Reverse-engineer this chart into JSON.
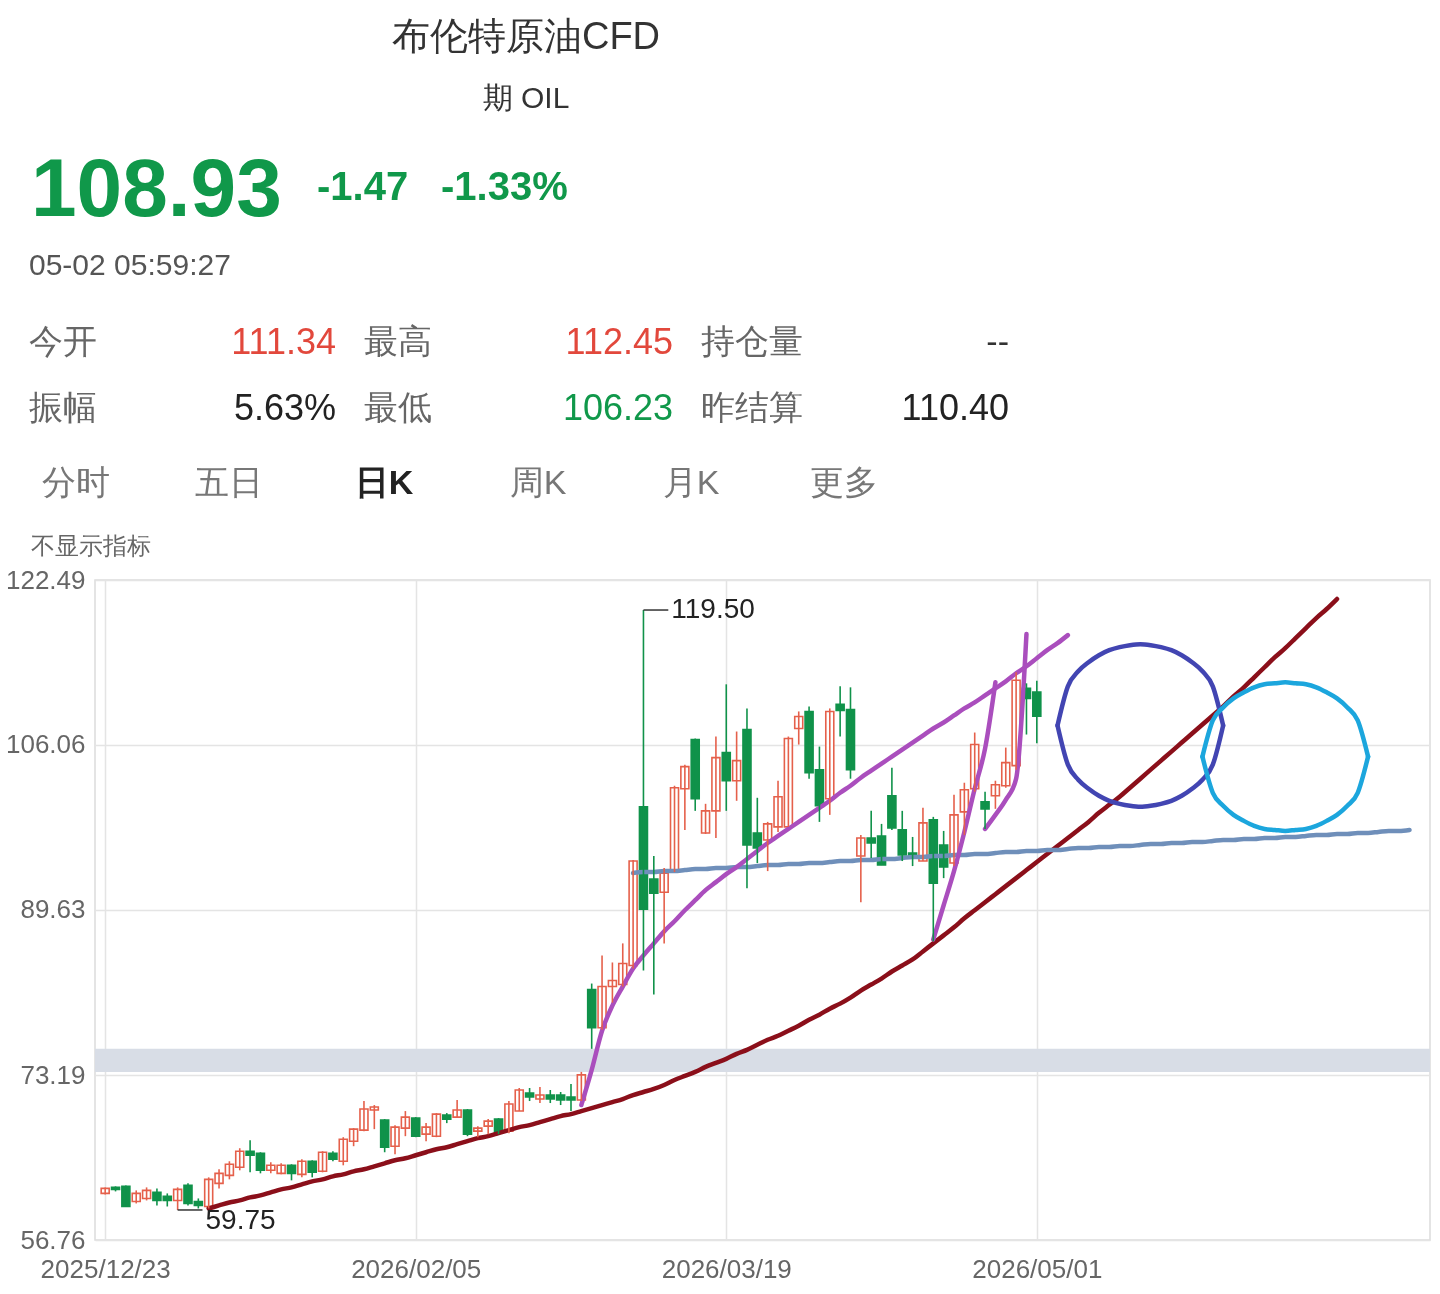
{
  "chart_data": {
    "type": "candlestick",
    "title": "布伦特原油CFD",
    "subtitle": "期 OIL",
    "categories": [
      "2025/12/23",
      null,
      null,
      null,
      null,
      null,
      null,
      null,
      null,
      null,
      null,
      null,
      null,
      null,
      null,
      null,
      null,
      null,
      null,
      null,
      null,
      null,
      null,
      null,
      null,
      null,
      null,
      null,
      null,
      null,
      "2026/02/05",
      null,
      null,
      null,
      null,
      null,
      null,
      null,
      null,
      null,
      null,
      null,
      null,
      null,
      null,
      null,
      null,
      null,
      null,
      null,
      null,
      null,
      null,
      null,
      null,
      null,
      null,
      null,
      null,
      null,
      "2026/03/19",
      null,
      null,
      null,
      null,
      null,
      null,
      null,
      null,
      null,
      null,
      null,
      null,
      null,
      null,
      null,
      null,
      null,
      null,
      null,
      null,
      null,
      null,
      null,
      null,
      null,
      null,
      null,
      null,
      null,
      "2026/05/01",
      null,
      null,
      null,
      null,
      null,
      null,
      null,
      null,
      null,
      null,
      null,
      null,
      null,
      null,
      null,
      null,
      null,
      null,
      null,
      null,
      null,
      null,
      null,
      null,
      null,
      null,
      null,
      null,
      null,
      null,
      null,
      null,
      null,
      null,
      null,
      null,
      null
    ],
    "ohlc": [
      [
        61.4,
        62.0,
        61.3,
        61.9
      ],
      [
        62.0,
        62.1,
        61.6,
        61.8
      ],
      [
        62.1,
        62.2,
        60.1,
        60.1
      ],
      [
        60.6,
        61.7,
        60.4,
        61.4
      ],
      [
        60.9,
        62.0,
        60.7,
        61.7
      ],
      [
        61.5,
        61.9,
        60.2,
        60.7
      ],
      [
        61.1,
        61.4,
        60.1,
        60.7
      ],
      [
        60.7,
        62.0,
        59.75,
        61.8
      ],
      [
        62.2,
        62.4,
        60.2,
        60.4
      ],
      [
        60.6,
        60.9,
        59.9,
        60.2
      ],
      [
        60.1,
        63.0,
        59.9,
        62.8
      ],
      [
        62.4,
        63.8,
        61.9,
        63.4
      ],
      [
        63.2,
        64.6,
        62.8,
        64.3
      ],
      [
        64.0,
        65.9,
        63.7,
        65.6
      ],
      [
        65.6,
        66.7,
        63.5,
        65.2
      ],
      [
        65.4,
        65.5,
        63.4,
        63.7
      ],
      [
        63.7,
        64.5,
        63.4,
        64.2
      ],
      [
        63.4,
        64.4,
        63.3,
        64.2
      ],
      [
        64.2,
        64.3,
        62.7,
        63.4
      ],
      [
        63.3,
        64.8,
        63.0,
        64.6
      ],
      [
        64.6,
        64.7,
        63.0,
        63.5
      ],
      [
        63.6,
        65.6,
        63.5,
        65.5
      ],
      [
        65.4,
        65.6,
        64.6,
        64.8
      ],
      [
        64.6,
        67.0,
        64.2,
        66.8
      ],
      [
        66.6,
        67.9,
        66.1,
        67.8
      ],
      [
        67.7,
        70.6,
        67.6,
        69.8
      ],
      [
        69.7,
        70.2,
        67.8,
        70.0
      ],
      [
        68.7,
        68.8,
        65.5,
        66.0
      ],
      [
        66.1,
        68.2,
        65.3,
        68.0
      ],
      [
        67.9,
        69.6,
        67.1,
        69.0
      ],
      [
        68.9,
        69.0,
        67.0,
        67.1
      ],
      [
        67.3,
        68.4,
        66.6,
        68.0
      ],
      [
        67.1,
        69.4,
        67.0,
        69.3
      ],
      [
        69.2,
        69.4,
        68.4,
        68.8
      ],
      [
        69.0,
        70.7,
        68.9,
        69.7
      ],
      [
        69.7,
        69.8,
        67.1,
        67.3
      ],
      [
        67.6,
        68.1,
        67.0,
        67.9
      ],
      [
        68.1,
        68.8,
        67.3,
        68.6
      ],
      [
        68.8,
        68.9,
        67.3,
        67.4
      ],
      [
        67.6,
        70.6,
        67.4,
        70.3
      ],
      [
        69.6,
        71.9,
        69.6,
        71.7
      ],
      [
        71.4,
        71.9,
        70.6,
        71.0
      ],
      [
        70.8,
        72.0,
        70.4,
        71.2
      ],
      [
        71.2,
        71.7,
        70.4,
        70.8
      ],
      [
        71.2,
        71.5,
        70.2,
        70.7
      ],
      [
        71.0,
        72.3,
        69.6,
        70.7
      ],
      [
        70.7,
        73.5,
        70.6,
        73.2
      ],
      [
        81.7,
        82.3,
        75.8,
        77.9
      ],
      [
        77.9,
        85.1,
        77.7,
        82.0
      ],
      [
        82.0,
        84.4,
        80.4,
        82.6
      ],
      [
        82.2,
        86.3,
        82.0,
        84.3
      ],
      [
        84.1,
        94.6,
        83.8,
        94.5
      ],
      [
        99.9,
        119.5,
        83.6,
        89.7
      ],
      [
        92.7,
        95.0,
        81.2,
        91.3
      ],
      [
        91.4,
        93.8,
        86.3,
        93.3
      ],
      [
        93.5,
        102.0,
        93.4,
        101.8
      ],
      [
        101.7,
        104.1,
        97.6,
        103.9
      ],
      [
        106.6,
        106.7,
        99.5,
        100.7
      ],
      [
        97.3,
        100.2,
        97.2,
        99.5
      ],
      [
        99.5,
        106.9,
        96.8,
        104.8
      ],
      [
        105.3,
        112.1,
        99.5,
        102.5
      ],
      [
        102.5,
        107.4,
        100.5,
        104.5
      ],
      [
        107.6,
        109.7,
        91.8,
        96.1
      ],
      [
        97.3,
        100.8,
        94.3,
        95.8
      ],
      [
        96.6,
        98.4,
        93.5,
        98.2
      ],
      [
        97.9,
        102.5,
        97.4,
        100.9
      ],
      [
        97.9,
        106.9,
        97.9,
        106.7
      ],
      [
        107.7,
        109.4,
        106.1,
        108.9
      ],
      [
        109.4,
        109.9,
        102.7,
        103.3
      ],
      [
        103.6,
        105.9,
        98.4,
        100.0
      ],
      [
        100.7,
        109.7,
        99.1,
        109.4
      ],
      [
        110.1,
        111.9,
        106.9,
        109.5
      ],
      [
        109.6,
        111.8,
        102.7,
        103.6
      ],
      [
        95.0,
        97.1,
        90.4,
        96.8
      ],
      [
        96.8,
        99.5,
        94.8,
        96.3
      ],
      [
        97.0,
        98.2,
        94.1,
        94.1
      ],
      [
        101.0,
        103.8,
        97.6,
        97.8
      ],
      [
        97.6,
        99.5,
        94.5,
        95.1
      ],
      [
        95.3,
        96.9,
        94.0,
        95.0
      ],
      [
        94.5,
        99.8,
        94.5,
        98.3
      ],
      [
        98.6,
        98.9,
        86.5,
        92.3
      ],
      [
        96.1,
        97.5,
        92.8,
        93.9
      ],
      [
        94.3,
        101.1,
        94.0,
        99.1
      ],
      [
        99.4,
        102.3,
        97.1,
        101.6
      ],
      [
        101.7,
        107.3,
        101.4,
        106.1
      ],
      [
        100.4,
        101.4,
        97.7,
        99.7
      ],
      [
        101.0,
        102.5,
        99.7,
        102.1
      ],
      [
        102.0,
        105.8,
        101.8,
        104.3
      ],
      [
        104.0,
        113.3,
        103.6,
        112.5
      ],
      [
        111.7,
        112.2,
        107.1,
        110.7
      ],
      [
        111.34,
        112.45,
        106.23,
        108.93
      ],
      null,
      null,
      null,
      null,
      null,
      null,
      null,
      null,
      null,
      null,
      null,
      null,
      null,
      null,
      null,
      null,
      null,
      null,
      null,
      null,
      null,
      null,
      null,
      null,
      null,
      null,
      null,
      null,
      null,
      null,
      null,
      null,
      null,
      null,
      null,
      null,
      null
    ],
    "colors": [
      "#e5604b",
      "#10924a",
      "#10924a",
      "#e5604b",
      "#e5604b",
      "#10924a",
      "#10924a",
      "#e5604b",
      "#10924a",
      "#10924a",
      "#e5604b",
      "#e5604b",
      "#e5604b",
      "#e5604b",
      "#10924a",
      "#10924a",
      "#e5604b",
      "#e5604b",
      "#10924a",
      "#e5604b",
      "#10924a",
      "#e5604b",
      "#10924a",
      "#e5604b",
      "#e5604b",
      "#e5604b",
      "#e5604b",
      "#10924a",
      "#e5604b",
      "#e5604b",
      "#10924a",
      "#e5604b",
      "#e5604b",
      "#10924a",
      "#e5604b",
      "#10924a",
      "#e5604b",
      "#e5604b",
      "#10924a",
      "#e5604b",
      "#e5604b",
      "#10924a",
      "#e5604b",
      "#10924a",
      "#10924a",
      "#10924a",
      "#e5604b",
      "#10924a",
      "#e5604b",
      "#e5604b",
      "#e5604b",
      "#e5604b",
      "#10924a",
      "#10924a",
      "#e5604b",
      "#e5604b",
      "#e5604b",
      "#10924a",
      "#e5604b",
      "#e5604b",
      "#10924a",
      "#e5604b",
      "#10924a",
      "#10924a",
      "#e5604b",
      "#e5604b",
      "#e5604b",
      "#e5604b",
      "#10924a",
      "#10924a",
      "#e5604b",
      "#10924a",
      "#10924a",
      "#e5604b",
      "#10924a",
      "#10924a",
      "#10924a",
      "#10924a",
      "#10924a",
      "#e5604b",
      "#10924a",
      "#10924a",
      "#e5604b",
      "#e5604b",
      "#e5604b",
      "#10924a",
      "#e5604b",
      "#e5604b",
      "#e5604b",
      "#10924a",
      "#10924a",
      null,
      null,
      null,
      null,
      null,
      null,
      null,
      null,
      null,
      null,
      null,
      null,
      null,
      null,
      null,
      null,
      null,
      null,
      null,
      null,
      null,
      null,
      null,
      null,
      null,
      null,
      null,
      null,
      null,
      null,
      null,
      null,
      null,
      null,
      null,
      null,
      null
    ],
    "series": [
      {
        "type": "line",
        "color": "#8b0f1a",
        "values": [
          null,
          null,
          null,
          null,
          null,
          null,
          null,
          null,
          null,
          null,
          59.9,
          60.2,
          60.5,
          60.7,
          61.0,
          61.2,
          61.5,
          61.8,
          62.0,
          62.3,
          62.6,
          62.8,
          63.1,
          63.3,
          63.6,
          63.8,
          64.1,
          64.4,
          64.7,
          64.9,
          65.2,
          65.5,
          65.8,
          66.0,
          66.3,
          66.6,
          66.9,
          67.1,
          67.4,
          67.7,
          68.0,
          68.2,
          68.5,
          68.8,
          69.1,
          69.3,
          69.6,
          69.9,
          70.2,
          70.5,
          70.8,
          71.2,
          71.5,
          71.8,
          72.2,
          72.7,
          73.1,
          73.5,
          74.0,
          74.4,
          74.8,
          75.3,
          75.7,
          76.2,
          76.7,
          77.1,
          77.6,
          78.1,
          78.7,
          79.2,
          79.8,
          80.3,
          80.9,
          81.6,
          82.2,
          82.8,
          83.5,
          84.1,
          84.7,
          85.5,
          86.3,
          87.1,
          87.9,
          88.8,
          89.6,
          90.4,
          91.2,
          92.0,
          92.8,
          93.6,
          94.4,
          95.2,
          96.0,
          96.8,
          97.6,
          98.4,
          99.3,
          100.1,
          100.9,
          101.8,
          102.7,
          103.6,
          104.5,
          105.4,
          106.3,
          107.2,
          108.1,
          109.0,
          109.9,
          110.9,
          111.8,
          112.8,
          113.8,
          114.8,
          115.7,
          116.7,
          117.7,
          118.7,
          119.6,
          120.6,
          null,
          null,
          null,
          null,
          null,
          null,
          null,
          null
        ]
      },
      {
        "type": "line",
        "color": "#6f8fba",
        "values": [
          null,
          null,
          null,
          null,
          null,
          null,
          null,
          null,
          null,
          null,
          null,
          null,
          null,
          null,
          null,
          null,
          null,
          null,
          null,
          null,
          null,
          null,
          null,
          null,
          null,
          null,
          null,
          null,
          null,
          null,
          null,
          null,
          null,
          null,
          null,
          null,
          null,
          null,
          null,
          null,
          null,
          null,
          null,
          null,
          null,
          null,
          null,
          null,
          null,
          null,
          null,
          93.3,
          93.4,
          93.4,
          93.5,
          93.5,
          93.6,
          93.7,
          93.7,
          93.8,
          93.8,
          93.9,
          93.9,
          94.0,
          94.1,
          94.1,
          94.2,
          94.2,
          94.3,
          94.3,
          94.4,
          94.5,
          94.5,
          94.6,
          94.6,
          94.7,
          94.7,
          94.8,
          94.9,
          94.9,
          95.0,
          95.0,
          95.1,
          95.1,
          95.2,
          95.2,
          95.3,
          95.4,
          95.4,
          95.5,
          95.5,
          95.6,
          95.6,
          95.7,
          95.8,
          95.8,
          95.9,
          95.9,
          96.0,
          96.0,
          96.1,
          96.2,
          96.2,
          96.3,
          96.3,
          96.4,
          96.4,
          96.5,
          96.6,
          96.6,
          96.7,
          96.7,
          96.8,
          96.8,
          96.9,
          96.9,
          97.0,
          97.1,
          97.1,
          97.2,
          97.2,
          97.3,
          97.3,
          97.4,
          97.5,
          97.5,
          97.6,
          null
        ]
      },
      {
        "type": "line",
        "color": "#aa4ebd",
        "values": [
          null,
          null,
          null,
          null,
          null,
          null,
          null,
          null,
          null,
          null,
          null,
          null,
          null,
          null,
          null,
          null,
          null,
          null,
          null,
          null,
          null,
          null,
          null,
          null,
          null,
          null,
          null,
          null,
          null,
          null,
          null,
          null,
          null,
          null,
          null,
          null,
          null,
          null,
          null,
          null,
          null,
          null,
          null,
          null,
          null,
          null,
          70.2,
          73.7,
          77.6,
          80.1,
          82.0,
          83.8,
          85.1,
          86.3,
          87.5,
          88.5,
          89.6,
          90.6,
          91.6,
          92.4,
          93.2,
          93.9,
          94.7,
          95.5,
          96.3,
          97.0,
          97.7,
          98.4,
          99.1,
          99.8,
          100.5,
          101.3,
          102.0,
          102.8,
          103.5,
          104.2,
          104.9,
          105.6,
          106.3,
          107.0,
          107.7,
          108.3,
          109.0,
          109.7,
          110.3,
          111.0,
          111.7,
          112.4,
          113.2,
          113.9,
          114.7,
          115.5,
          116.2,
          117.0,
          null,
          null,
          null,
          null,
          null,
          null,
          null,
          null,
          null,
          null,
          null,
          null,
          null,
          null,
          null,
          null,
          null,
          null,
          null,
          null,
          null,
          null,
          null,
          null,
          null,
          null,
          null,
          null,
          null,
          null,
          null,
          null,
          null,
          null
        ]
      },
      {
        "type": "line",
        "color": "#aa4ebd",
        "values": [
          null,
          null,
          null,
          null,
          null,
          null,
          null,
          null,
          null,
          null,
          null,
          null,
          null,
          null,
          null,
          null,
          null,
          null,
          null,
          null,
          null,
          null,
          null,
          null,
          null,
          null,
          null,
          null,
          null,
          null,
          null,
          null,
          null,
          null,
          null,
          null,
          null,
          null,
          null,
          null,
          null,
          null,
          null,
          null,
          null,
          null,
          null,
          null,
          null,
          null,
          null,
          null,
          null,
          null,
          null,
          null,
          null,
          null,
          null,
          null,
          null,
          null,
          null,
          null,
          null,
          null,
          null,
          null,
          null,
          null,
          null,
          null,
          null,
          null,
          null,
          null,
          null,
          null,
          null,
          null,
          86.7,
          90.1,
          93.5,
          97.4,
          101.7,
          105.7,
          112.3,
          null,
          null,
          null,
          null,
          null,
          null,
          null,
          null,
          null,
          null,
          null,
          null,
          null,
          null,
          null,
          null,
          null,
          null,
          null,
          null,
          null,
          null,
          null,
          null,
          null,
          null,
          null,
          null,
          null,
          null,
          null,
          null,
          null,
          null,
          null,
          null,
          null,
          null,
          null,
          null,
          null
        ]
      },
      {
        "type": "line",
        "color": "#aa4ebd",
        "values": [
          null,
          null,
          null,
          null,
          null,
          null,
          null,
          null,
          null,
          null,
          null,
          null,
          null,
          null,
          null,
          null,
          null,
          null,
          null,
          null,
          null,
          null,
          null,
          null,
          null,
          null,
          null,
          null,
          null,
          null,
          null,
          null,
          null,
          null,
          null,
          null,
          null,
          null,
          null,
          null,
          null,
          null,
          null,
          null,
          null,
          null,
          null,
          null,
          null,
          null,
          null,
          null,
          null,
          null,
          null,
          null,
          null,
          null,
          null,
          null,
          null,
          null,
          null,
          null,
          null,
          null,
          null,
          null,
          null,
          null,
          null,
          null,
          null,
          null,
          null,
          null,
          null,
          null,
          null,
          null,
          null,
          null,
          null,
          null,
          null,
          97.7,
          99.1,
          100.6,
          102.7,
          117.1,
          null,
          null,
          null,
          null,
          null,
          null,
          null,
          null,
          null,
          null,
          null,
          null,
          null,
          null,
          null,
          null,
          null,
          null,
          null,
          null,
          null,
          null,
          null,
          null,
          null,
          null,
          null,
          null,
          null,
          null,
          null,
          null,
          null,
          null,
          null,
          null,
          null,
          null
        ]
      },
      {
        "type": "line",
        "color": "#4245b2",
        "values": [
          null,
          null,
          null,
          null,
          null,
          null,
          null,
          null,
          null,
          null,
          null,
          null,
          null,
          null,
          null,
          null,
          null,
          null,
          null,
          null,
          null,
          null,
          null,
          null,
          null,
          null,
          null,
          null,
          null,
          null,
          null,
          null,
          null,
          null,
          null,
          null,
          null,
          null,
          null,
          null,
          null,
          null,
          null,
          null,
          null,
          null,
          null,
          null,
          null,
          null,
          null,
          null,
          null,
          null,
          null,
          null,
          null,
          null,
          null,
          null,
          null,
          null,
          null,
          null,
          null,
          null,
          null,
          null,
          null,
          null,
          null,
          null,
          null,
          null,
          null,
          null,
          null,
          null,
          null,
          null,
          null,
          null,
          null,
          null,
          null,
          null,
          null,
          null,
          null,
          null,
          null,
          null,
          108.0,
          111.9,
          113.4,
          114.3,
          115.0,
          115.5,
          115.8,
          116.0,
          116.1,
          116.0,
          115.8,
          115.5,
          115.0,
          114.3,
          113.4,
          111.9,
          108.0,
          null,
          null,
          null,
          null,
          null,
          null,
          null,
          null,
          null,
          null,
          null,
          null,
          null,
          null,
          null,
          null,
          null,
          null,
          null
        ]
      },
      {
        "type": "line",
        "color": "#4245b2",
        "values": [
          null,
          null,
          null,
          null,
          null,
          null,
          null,
          null,
          null,
          null,
          null,
          null,
          null,
          null,
          null,
          null,
          null,
          null,
          null,
          null,
          null,
          null,
          null,
          null,
          null,
          null,
          null,
          null,
          null,
          null,
          null,
          null,
          null,
          null,
          null,
          null,
          null,
          null,
          null,
          null,
          null,
          null,
          null,
          null,
          null,
          null,
          null,
          null,
          null,
          null,
          null,
          null,
          null,
          null,
          null,
          null,
          null,
          null,
          null,
          null,
          null,
          null,
          null,
          null,
          null,
          null,
          null,
          null,
          null,
          null,
          null,
          null,
          null,
          null,
          null,
          null,
          null,
          null,
          null,
          null,
          null,
          null,
          null,
          null,
          null,
          null,
          null,
          null,
          null,
          null,
          null,
          null,
          108.0,
          104.1,
          102.6,
          101.7,
          101.0,
          100.5,
          100.2,
          100.0,
          99.9,
          100.0,
          100.2,
          100.5,
          101.0,
          101.7,
          102.6,
          104.1,
          108.0,
          null,
          null,
          null,
          null,
          null,
          null,
          null,
          null,
          null,
          null,
          null,
          null,
          null,
          null,
          null,
          null,
          null,
          null,
          null
        ]
      },
      {
        "type": "line",
        "color": "#1ca6dd",
        "values": [
          null,
          null,
          null,
          null,
          null,
          null,
          null,
          null,
          null,
          null,
          null,
          null,
          null,
          null,
          null,
          null,
          null,
          null,
          null,
          null,
          null,
          null,
          null,
          null,
          null,
          null,
          null,
          null,
          null,
          null,
          null,
          null,
          null,
          null,
          null,
          null,
          null,
          null,
          null,
          null,
          null,
          null,
          null,
          null,
          null,
          null,
          null,
          null,
          null,
          null,
          null,
          null,
          null,
          null,
          null,
          null,
          null,
          null,
          null,
          null,
          null,
          null,
          null,
          null,
          null,
          null,
          null,
          null,
          null,
          null,
          null,
          null,
          null,
          null,
          null,
          null,
          null,
          null,
          null,
          null,
          null,
          null,
          null,
          null,
          null,
          null,
          null,
          null,
          null,
          null,
          null,
          null,
          null,
          null,
          null,
          null,
          null,
          null,
          null,
          null,
          null,
          null,
          null,
          null,
          null,
          null,
          104.9,
          108.5,
          109.8,
          110.7,
          111.3,
          111.8,
          112.1,
          112.2,
          112.3,
          112.2,
          112.1,
          111.8,
          111.3,
          110.7,
          109.8,
          108.5,
          104.9,
          null,
          null,
          null,
          null,
          null
        ]
      },
      {
        "type": "line",
        "color": "#1ca6dd",
        "values": [
          null,
          null,
          null,
          null,
          null,
          null,
          null,
          null,
          null,
          null,
          null,
          null,
          null,
          null,
          null,
          null,
          null,
          null,
          null,
          null,
          null,
          null,
          null,
          null,
          null,
          null,
          null,
          null,
          null,
          null,
          null,
          null,
          null,
          null,
          null,
          null,
          null,
          null,
          null,
          null,
          null,
          null,
          null,
          null,
          null,
          null,
          null,
          null,
          null,
          null,
          null,
          null,
          null,
          null,
          null,
          null,
          null,
          null,
          null,
          null,
          null,
          null,
          null,
          null,
          null,
          null,
          null,
          null,
          null,
          null,
          null,
          null,
          null,
          null,
          null,
          null,
          null,
          null,
          null,
          null,
          null,
          null,
          null,
          null,
          null,
          null,
          null,
          null,
          null,
          null,
          null,
          null,
          null,
          null,
          null,
          null,
          null,
          null,
          null,
          null,
          null,
          null,
          null,
          null,
          null,
          null,
          104.9,
          101.3,
          100.0,
          99.1,
          98.5,
          98.0,
          97.7,
          97.6,
          97.5,
          97.6,
          97.7,
          98.0,
          98.5,
          99.1,
          100.0,
          101.3,
          104.9,
          null,
          null,
          null,
          null,
          null
        ]
      }
    ],
    "bands": [
      {
        "axis": "y",
        "from": 73.5,
        "to": 75.8,
        "color": "#d8dde6"
      }
    ],
    "ylim": [
      56.76,
      122.49
    ],
    "yticks": [
      56.76,
      73.19,
      89.63,
      106.06,
      122.49
    ],
    "grid": true,
    "annotations": [
      "108.93",
      "-1.47",
      "-1.33%",
      "05-02 05:59:27",
      "今开",
      "111.34",
      "最高",
      "112.45",
      "持仓量",
      "--",
      "振幅",
      "5.63%",
      "最低",
      "106.23",
      "昨结算",
      "110.40",
      "分时",
      "五日",
      "日K",
      "周K",
      "月K",
      "更多",
      "不显示指标",
      "119.50",
      "59.75"
    ]
  }
}
